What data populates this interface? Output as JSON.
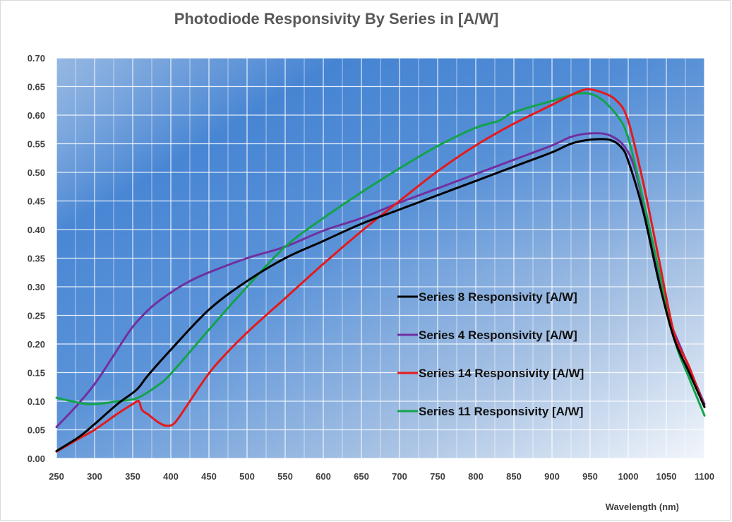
{
  "chart_data": {
    "type": "line",
    "title": "Photodiode Responsivity By Series in  [A/W]",
    "xlabel": "Wavelength (nm)",
    "ylabel": "",
    "xlim": [
      250,
      1100
    ],
    "ylim": [
      0,
      0.7
    ],
    "x_ticks": [
      "250",
      "300",
      "350",
      "400",
      "450",
      "500",
      "550",
      "600",
      "650",
      "700",
      "750",
      "800",
      "850",
      "900",
      "950",
      "1000",
      "1050",
      "1100"
    ],
    "y_ticks": [
      "0.00",
      "0.05",
      "0.10",
      "0.15",
      "0.20",
      "0.25",
      "0.30",
      "0.35",
      "0.40",
      "0.45",
      "0.50",
      "0.55",
      "0.60",
      "0.65",
      "0.70"
    ],
    "grid": true,
    "legend_position": "center-right, inside plot",
    "series": [
      {
        "name": "Series 8 Responsivity [A/W]",
        "color": "#000000",
        "points": [
          [
            250,
            0.013
          ],
          [
            280,
            0.038
          ],
          [
            300,
            0.06
          ],
          [
            330,
            0.095
          ],
          [
            355,
            0.12
          ],
          [
            370,
            0.145
          ],
          [
            400,
            0.19
          ],
          [
            450,
            0.26
          ],
          [
            500,
            0.31
          ],
          [
            550,
            0.35
          ],
          [
            600,
            0.38
          ],
          [
            650,
            0.41
          ],
          [
            700,
            0.435
          ],
          [
            750,
            0.46
          ],
          [
            800,
            0.485
          ],
          [
            850,
            0.51
          ],
          [
            900,
            0.535
          ],
          [
            925,
            0.55
          ],
          [
            950,
            0.557
          ],
          [
            975,
            0.557
          ],
          [
            990,
            0.545
          ],
          [
            1000,
            0.52
          ],
          [
            1020,
            0.43
          ],
          [
            1040,
            0.31
          ],
          [
            1060,
            0.21
          ],
          [
            1080,
            0.15
          ],
          [
            1100,
            0.09
          ]
        ]
      },
      {
        "name": "Series 4 Responsivity [A/W]",
        "color": "#7030a0",
        "points": [
          [
            250,
            0.055
          ],
          [
            275,
            0.09
          ],
          [
            300,
            0.13
          ],
          [
            325,
            0.18
          ],
          [
            350,
            0.23
          ],
          [
            375,
            0.265
          ],
          [
            400,
            0.29
          ],
          [
            425,
            0.31
          ],
          [
            450,
            0.325
          ],
          [
            500,
            0.35
          ],
          [
            550,
            0.37
          ],
          [
            600,
            0.398
          ],
          [
            650,
            0.42
          ],
          [
            700,
            0.447
          ],
          [
            750,
            0.472
          ],
          [
            800,
            0.497
          ],
          [
            850,
            0.522
          ],
          [
            900,
            0.547
          ],
          [
            925,
            0.562
          ],
          [
            950,
            0.568
          ],
          [
            975,
            0.565
          ],
          [
            995,
            0.545
          ],
          [
            1010,
            0.5
          ],
          [
            1030,
            0.38
          ],
          [
            1050,
            0.26
          ],
          [
            1070,
            0.19
          ],
          [
            1100,
            0.095
          ]
        ]
      },
      {
        "name": "Series 14 Responsivity [A/W]",
        "color": "#e41a1c",
        "points": [
          [
            250,
            0.012
          ],
          [
            280,
            0.035
          ],
          [
            300,
            0.05
          ],
          [
            330,
            0.078
          ],
          [
            350,
            0.095
          ],
          [
            358,
            0.1
          ],
          [
            362,
            0.085
          ],
          [
            370,
            0.077
          ],
          [
            385,
            0.062
          ],
          [
            395,
            0.057
          ],
          [
            405,
            0.062
          ],
          [
            420,
            0.09
          ],
          [
            440,
            0.13
          ],
          [
            460,
            0.165
          ],
          [
            500,
            0.22
          ],
          [
            550,
            0.28
          ],
          [
            600,
            0.34
          ],
          [
            650,
            0.397
          ],
          [
            700,
            0.45
          ],
          [
            750,
            0.502
          ],
          [
            800,
            0.547
          ],
          [
            850,
            0.585
          ],
          [
            900,
            0.618
          ],
          [
            925,
            0.635
          ],
          [
            945,
            0.645
          ],
          [
            965,
            0.64
          ],
          [
            985,
            0.625
          ],
          [
            1000,
            0.59
          ],
          [
            1020,
            0.48
          ],
          [
            1040,
            0.35
          ],
          [
            1060,
            0.22
          ],
          [
            1080,
            0.16
          ],
          [
            1100,
            0.09
          ]
        ]
      },
      {
        "name": "Series 11 Responsivity [A/W]",
        "color": "#13a34a",
        "points": [
          [
            250,
            0.106
          ],
          [
            270,
            0.1
          ],
          [
            290,
            0.095
          ],
          [
            310,
            0.096
          ],
          [
            330,
            0.1
          ],
          [
            355,
            0.105
          ],
          [
            380,
            0.125
          ],
          [
            400,
            0.148
          ],
          [
            450,
            0.225
          ],
          [
            500,
            0.3
          ],
          [
            550,
            0.37
          ],
          [
            600,
            0.42
          ],
          [
            650,
            0.465
          ],
          [
            700,
            0.507
          ],
          [
            750,
            0.546
          ],
          [
            800,
            0.578
          ],
          [
            830,
            0.59
          ],
          [
            850,
            0.605
          ],
          [
            900,
            0.625
          ],
          [
            935,
            0.638
          ],
          [
            960,
            0.632
          ],
          [
            985,
            0.6
          ],
          [
            1000,
            0.56
          ],
          [
            1020,
            0.45
          ],
          [
            1040,
            0.33
          ],
          [
            1060,
            0.21
          ],
          [
            1080,
            0.14
          ],
          [
            1100,
            0.075
          ]
        ]
      }
    ]
  }
}
